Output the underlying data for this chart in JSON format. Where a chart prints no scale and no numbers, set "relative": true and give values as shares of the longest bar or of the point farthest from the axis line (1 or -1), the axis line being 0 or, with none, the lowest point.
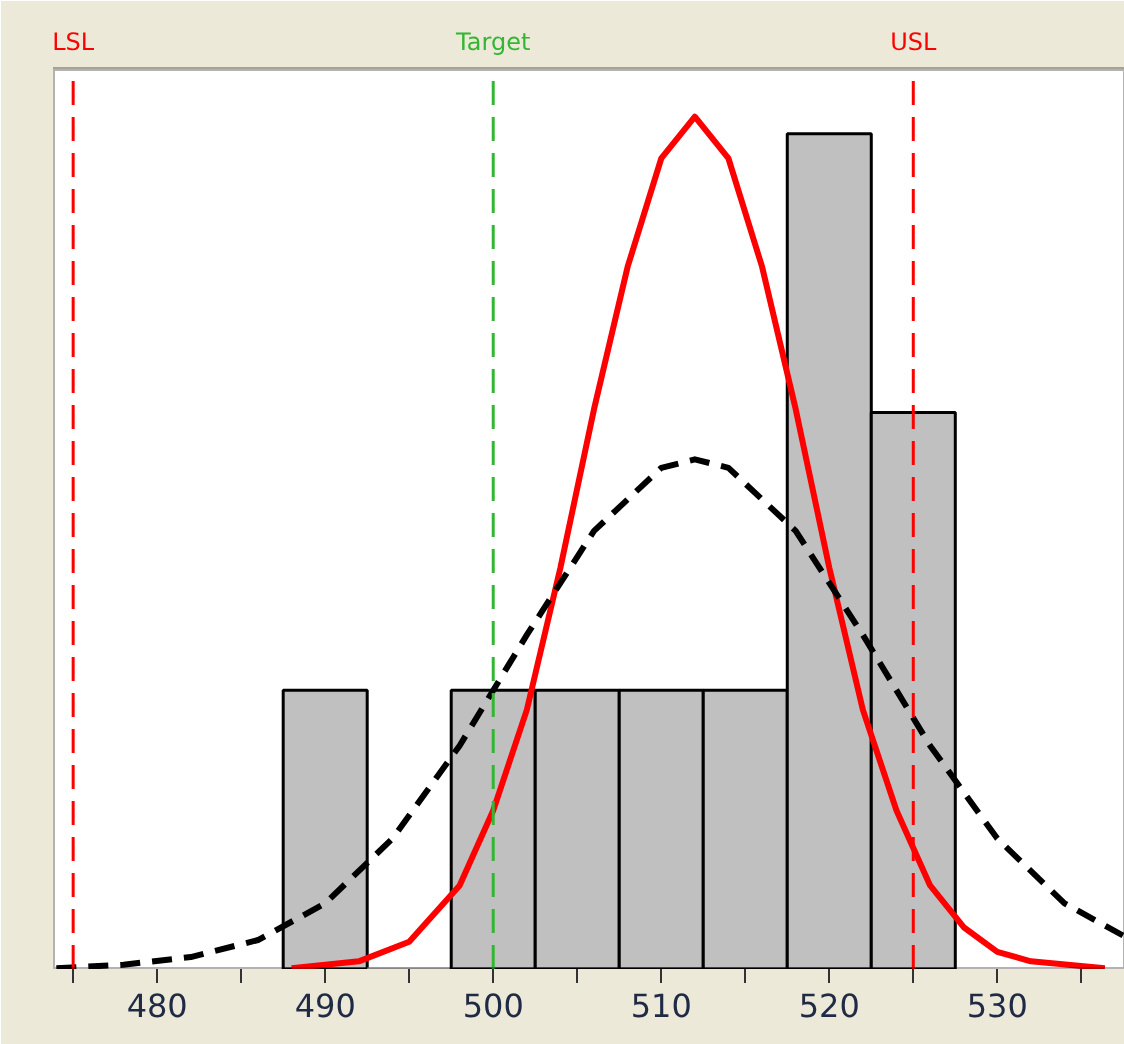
{
  "chart_data": {
    "type": "histogram",
    "relative": true,
    "bins": [
      487.5,
      492.5,
      497.5,
      502.5,
      507.5,
      512.5,
      517.5,
      522.5,
      527.5
    ],
    "values": [
      0.327,
      0,
      0.327,
      0.327,
      0.327,
      0.327,
      0.98,
      0.653
    ],
    "color": "#c0c0c0",
    "series": [
      {
        "type": "line",
        "color": "#ff0000",
        "line_style": "solid",
        "x": [
          488,
          492,
          495,
          498,
          500,
          502,
          504,
          506,
          508,
          510,
          512,
          514,
          516,
          518,
          520,
          522,
          524,
          526,
          528,
          530,
          532,
          536.4
        ],
        "values": [
          0.001,
          0.009,
          0.032,
          0.098,
          0.186,
          0.304,
          0.471,
          0.657,
          0.824,
          0.951,
          1,
          0.951,
          0.824,
          0.657,
          0.471,
          0.304,
          0.186,
          0.098,
          0.049,
          0.02,
          0.009,
          0.001
        ]
      },
      {
        "type": "line",
        "color": "#000000",
        "line_style": "dashed",
        "x": [
          474,
          478,
          482,
          486,
          490,
          494,
          498,
          502,
          506,
          510,
          512,
          514,
          518,
          522,
          526,
          530,
          534,
          537.6
        ],
        "values": [
          0.001,
          0.005,
          0.014,
          0.034,
          0.077,
          0.153,
          0.262,
          0.392,
          0.514,
          0.588,
          0.598,
          0.588,
          0.514,
          0.392,
          0.262,
          0.153,
          0.077,
          0.038
        ]
      }
    ],
    "xlim": [
      473.8,
      537.6
    ],
    "xticks": [
      {
        "value": 475,
        "label": null
      },
      480,
      {
        "value": 485,
        "label": null
      },
      490,
      {
        "value": 495,
        "label": null
      },
      500,
      {
        "value": 505,
        "label": null
      },
      510,
      {
        "value": 515,
        "label": null
      },
      520,
      {
        "value": 525,
        "label": null
      },
      530,
      {
        "value": 535,
        "label": null
      }
    ],
    "ref_lines": [
      {
        "axis": "x",
        "value": 475,
        "label": "LSL",
        "color": "#ff0000",
        "line_style": "dashed"
      },
      {
        "axis": "x",
        "value": 500,
        "label": "Target",
        "color": "#33b633",
        "line_style": "dashed"
      },
      {
        "axis": "x",
        "value": 525,
        "label": "USL",
        "color": "#ff0000",
        "line_style": "dashed"
      }
    ],
    "grid": false
  }
}
